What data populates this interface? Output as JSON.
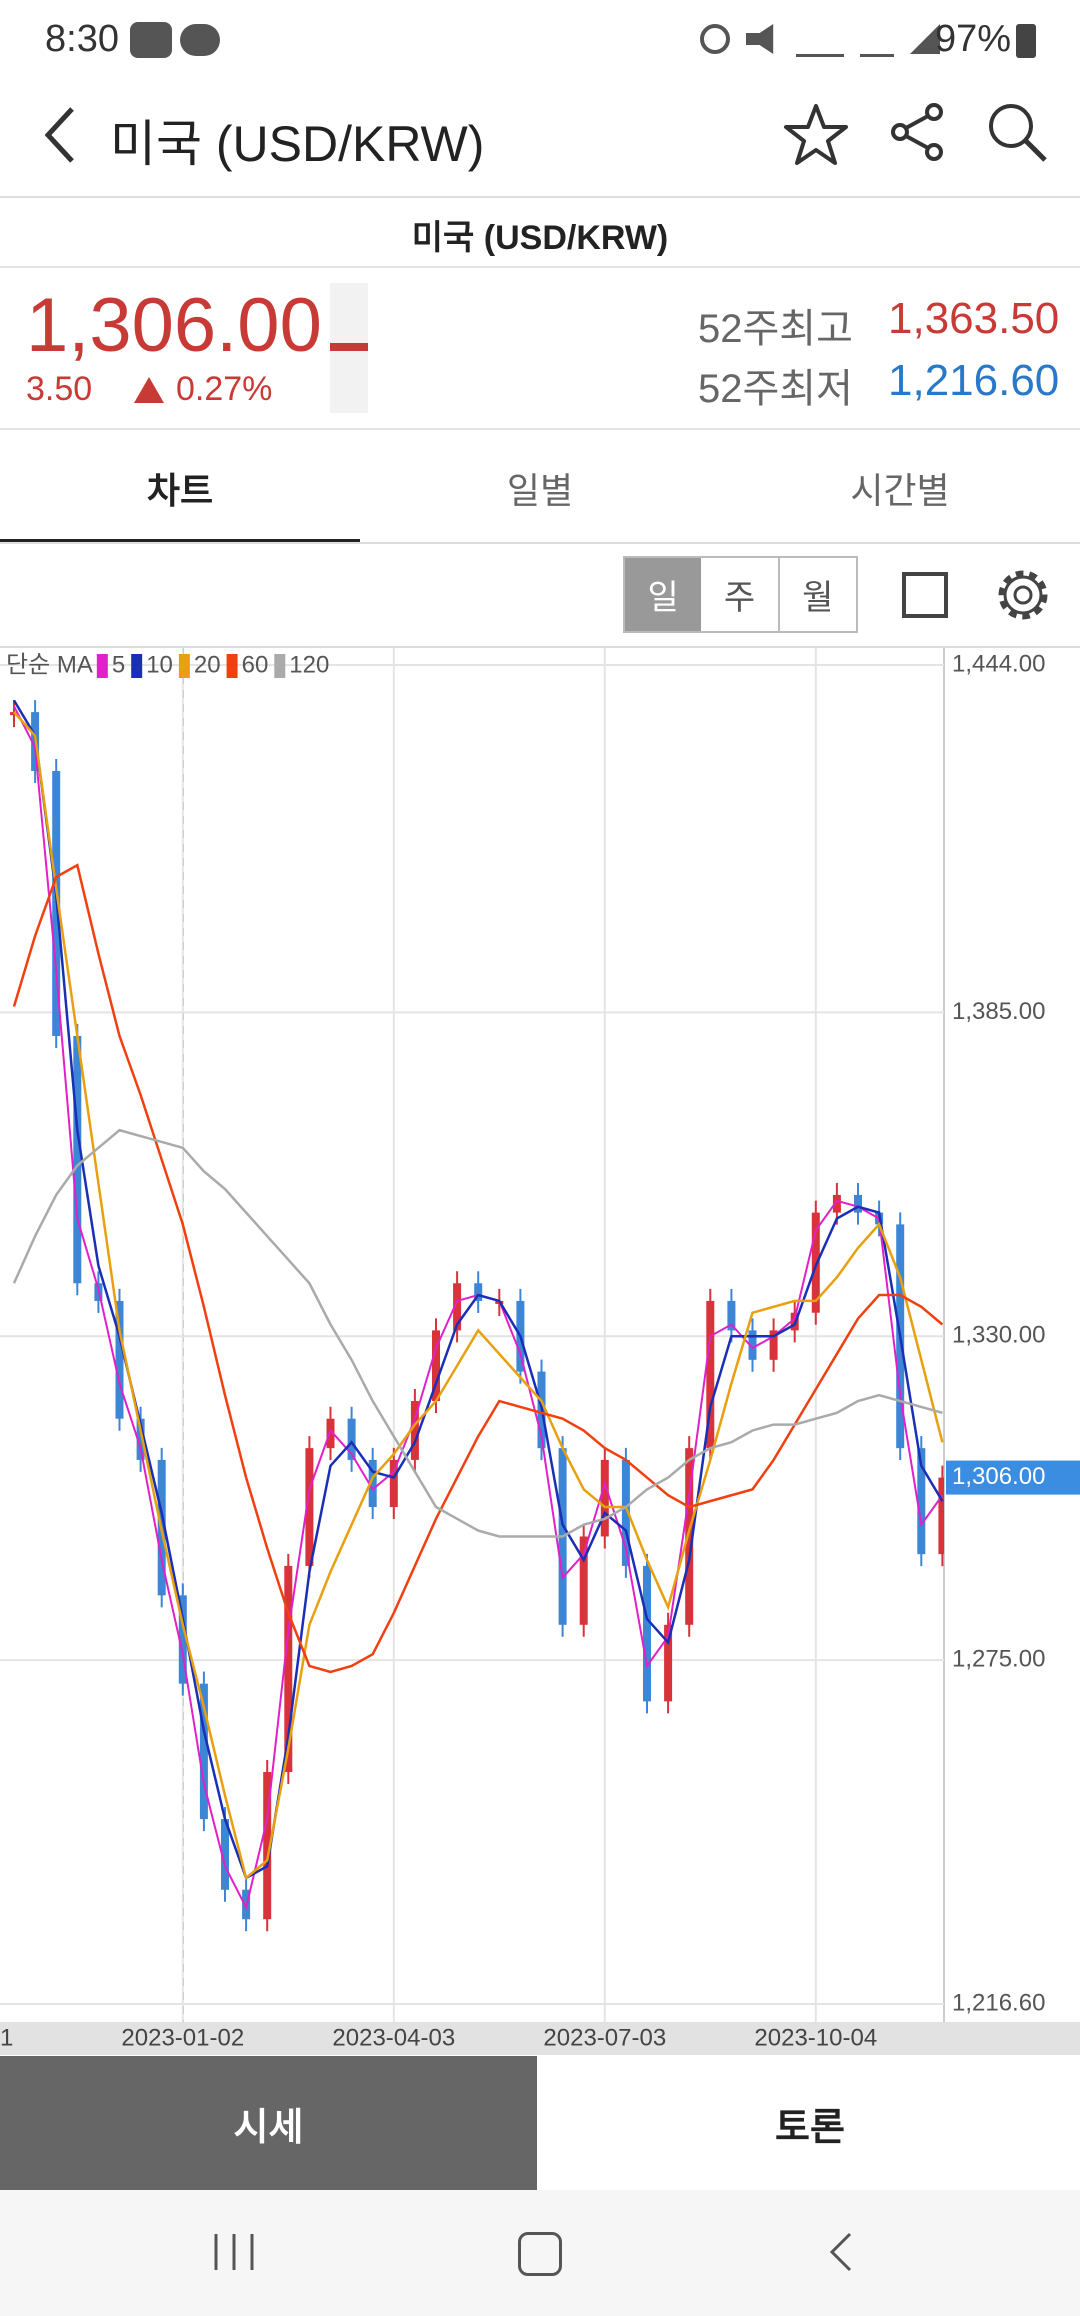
{
  "status": {
    "time": "8:30",
    "battery": "97%"
  },
  "header": {
    "title": "미국 (USD/KRW)"
  },
  "subtitle": "미국 (USD/KRW)",
  "quote": {
    "price": "1,306.00",
    "change": "3.50",
    "change_pct": "0.27%",
    "high_label": "52주최고",
    "high": "1,363.50",
    "low_label": "52주최저",
    "low": "1,216.60"
  },
  "tabs": [
    "차트",
    "일별",
    "시간별"
  ],
  "periods": [
    "일",
    "주",
    "월"
  ],
  "bottom_tabs": [
    "시세",
    "토론"
  ],
  "chart_data": {
    "type": "candlestick",
    "legend_title": "단순 MA",
    "last_label": "1,306.00",
    "categories": [
      "1",
      null,
      null,
      null,
      null,
      null,
      null,
      null,
      "2023-01-02",
      null,
      null,
      null,
      null,
      null,
      null,
      null,
      null,
      null,
      "2023-04-03",
      null,
      null,
      null,
      null,
      null,
      null,
      null,
      null,
      null,
      "2023-07-03",
      null,
      null,
      null,
      null,
      null,
      null,
      null,
      null,
      null,
      "2023-10-04",
      null,
      null,
      null,
      null,
      null,
      null
    ],
    "ylim": [
      1216.6,
      1444
    ],
    "yticks": [
      {
        "value": 1216.6,
        "label": "1,216.60"
      },
      {
        "value": 1275,
        "label": "1,275.00"
      },
      {
        "value": 1330,
        "label": "1,330.00"
      },
      {
        "value": 1385,
        "label": "1,385.00"
      },
      {
        "value": 1444,
        "label": "1,444.00"
      }
    ],
    "grid": true,
    "up_color": "#d8333a",
    "down_color": "#3d86d6",
    "price": [
      1436,
      1426,
      1381,
      1339,
      1336,
      1316,
      1309,
      1286,
      1271,
      1248,
      1236,
      1231,
      1256,
      1291,
      1311,
      1316,
      1309,
      1301,
      1309,
      1319,
      1331,
      1339,
      1336,
      1336,
      1324,
      1311,
      1281,
      1296,
      1309,
      1291,
      1268,
      1281,
      1311,
      1336,
      1331,
      1326,
      1331,
      1334,
      1351,
      1354,
      1351,
      1349,
      1311,
      1293,
      1306
    ],
    "series": [
      {
        "name": "5",
        "color": "#e020c8",
        "values": [
          1437,
          1430,
          1392,
          1350,
          1338,
          1322,
          1311,
          1292,
          1276,
          1254,
          1240,
          1233,
          1248,
          1280,
          1304,
          1314,
          1310,
          1304,
          1307,
          1316,
          1328,
          1336,
          1337,
          1336,
          1327,
          1313,
          1289,
          1293,
          1305,
          1294,
          1274,
          1279,
          1303,
          1330,
          1332,
          1328,
          1330,
          1333,
          1348,
          1353,
          1352,
          1350,
          1320,
          1298,
          1303
        ]
      },
      {
        "name": "10",
        "color": "#1a2fb5",
        "values": [
          1438,
          1432,
          1405,
          1365,
          1342,
          1330,
          1315,
          1300,
          1282,
          1263,
          1248,
          1238,
          1240,
          1262,
          1290,
          1308,
          1312,
          1307,
          1306,
          1312,
          1322,
          1332,
          1337,
          1336,
          1330,
          1318,
          1298,
          1292,
          1300,
          1297,
          1282,
          1278,
          1292,
          1318,
          1330,
          1330,
          1330,
          1332,
          1342,
          1350,
          1352,
          1351,
          1330,
          1308,
          1302
        ]
      },
      {
        "name": "20",
        "color": "#e8a010",
        "values": [
          1436,
          1432,
          1406,
          1381,
          1356,
          1331,
          1314,
          1297,
          1281,
          1267,
          1252,
          1238,
          1241,
          1260,
          1281,
          1290,
          1298,
          1306,
          1310,
          1315,
          1319,
          1325,
          1331,
          1327,
          1323,
          1319,
          1311,
          1304,
          1301,
          1301,
          1292,
          1284,
          1297,
          1309,
          1322,
          1334,
          1335,
          1336,
          1336,
          1340,
          1345,
          1349,
          1340,
          1326,
          1312
        ]
      },
      {
        "name": "60",
        "color": "#f04010",
        "values": [
          1386,
          1398,
          1408,
          1410,
          1395,
          1381,
          1371,
          1360,
          1349,
          1335,
          1320,
          1306,
          1294,
          1283,
          1274,
          1273,
          1274,
          1276,
          1283,
          1291,
          1299,
          1306,
          1313,
          1319,
          1318,
          1317,
          1316,
          1314,
          1311,
          1309,
          1306,
          1303,
          1301,
          1302,
          1303,
          1304,
          1309,
          1315,
          1321,
          1327,
          1333,
          1337,
          1337,
          1335,
          1332
        ]
      },
      {
        "name": "120",
        "color": "#aaaaaa",
        "values": [
          1339,
          1347,
          1354,
          1359,
          1362,
          1365,
          1364,
          1363,
          1362,
          1358,
          1355,
          1351,
          1347,
          1343,
          1339,
          1332,
          1326,
          1319,
          1313,
          1307,
          1301,
          1299,
          1297,
          1296,
          1296,
          1296,
          1296,
          1298,
          1299,
          1301,
          1304,
          1306,
          1309,
          1311,
          1312,
          1314,
          1315,
          1315,
          1316,
          1317,
          1319,
          1320,
          1319,
          1318,
          1317
        ]
      }
    ]
  }
}
